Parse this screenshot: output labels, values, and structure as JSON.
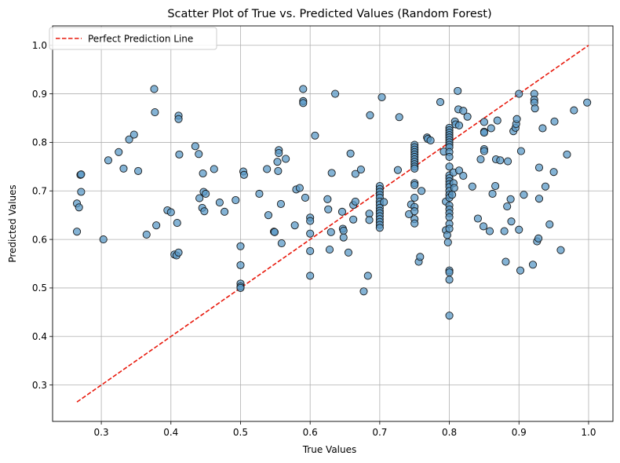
{
  "chart_data": {
    "type": "scatter",
    "title": "Scatter Plot of True vs. Predicted Values (Random Forest)",
    "xlabel": "True Values",
    "ylabel": "Predicted Values",
    "xlim": [
      0.23,
      1.035
    ],
    "ylim": [
      0.225,
      1.04
    ],
    "xticks": [
      "0.3",
      "0.4",
      "0.5",
      "0.6",
      "0.7",
      "0.8",
      "0.9",
      "1.0"
    ],
    "yticks": [
      "0.3",
      "0.4",
      "0.5",
      "0.6",
      "0.7",
      "0.8",
      "0.9",
      "1.0"
    ],
    "grid": true,
    "legend_position": "top-left",
    "reference_line": {
      "name": "Perfect Prediction Line",
      "style": "dashed",
      "color": "#e8190c",
      "from": [
        0.265,
        0.265
      ],
      "to": [
        1.0,
        1.0
      ]
    },
    "point_color": "#5b9ac7",
    "point_edge_color": "#1a1a1a",
    "series": [
      {
        "points": [
          [
            0.265,
            0.674
          ],
          [
            0.265,
            0.616
          ],
          [
            0.268,
            0.666
          ],
          [
            0.27,
            0.733
          ],
          [
            0.271,
            0.734
          ],
          [
            0.271,
            0.698
          ],
          [
            0.303,
            0.6
          ],
          [
            0.31,
            0.763
          ],
          [
            0.325,
            0.78
          ],
          [
            0.332,
            0.746
          ],
          [
            0.34,
            0.806
          ],
          [
            0.347,
            0.816
          ],
          [
            0.353,
            0.741
          ],
          [
            0.365,
            0.61
          ],
          [
            0.376,
            0.91
          ],
          [
            0.377,
            0.862
          ],
          [
            0.379,
            0.629
          ],
          [
            0.395,
            0.66
          ],
          [
            0.4,
            0.656
          ],
          [
            0.405,
            0.569
          ],
          [
            0.408,
            0.567
          ],
          [
            0.409,
            0.634
          ],
          [
            0.411,
            0.573
          ],
          [
            0.411,
            0.855
          ],
          [
            0.411,
            0.848
          ],
          [
            0.412,
            0.775
          ],
          [
            0.435,
            0.792
          ],
          [
            0.44,
            0.776
          ],
          [
            0.441,
            0.685
          ],
          [
            0.445,
            0.665
          ],
          [
            0.446,
            0.736
          ],
          [
            0.447,
            0.698
          ],
          [
            0.448,
            0.658
          ],
          [
            0.45,
            0.694
          ],
          [
            0.462,
            0.745
          ],
          [
            0.47,
            0.676
          ],
          [
            0.477,
            0.657
          ],
          [
            0.493,
            0.681
          ],
          [
            0.5,
            0.586
          ],
          [
            0.5,
            0.547
          ],
          [
            0.5,
            0.509
          ],
          [
            0.5,
            0.503
          ],
          [
            0.5,
            0.5
          ],
          [
            0.504,
            0.74
          ],
          [
            0.505,
            0.733
          ],
          [
            0.527,
            0.694
          ],
          [
            0.538,
            0.745
          ],
          [
            0.54,
            0.65
          ],
          [
            0.548,
            0.616
          ],
          [
            0.549,
            0.615
          ],
          [
            0.553,
            0.76
          ],
          [
            0.554,
            0.741
          ],
          [
            0.555,
            0.784
          ],
          [
            0.555,
            0.778
          ],
          [
            0.558,
            0.673
          ],
          [
            0.559,
            0.592
          ],
          [
            0.565,
            0.766
          ],
          [
            0.578,
            0.629
          ],
          [
            0.58,
            0.703
          ],
          [
            0.585,
            0.706
          ],
          [
            0.59,
            0.91
          ],
          [
            0.59,
            0.885
          ],
          [
            0.59,
            0.881
          ],
          [
            0.593,
            0.686
          ],
          [
            0.6,
            0.645
          ],
          [
            0.6,
            0.638
          ],
          [
            0.6,
            0.612
          ],
          [
            0.6,
            0.576
          ],
          [
            0.6,
            0.525
          ],
          [
            0.607,
            0.814
          ],
          [
            0.625,
            0.683
          ],
          [
            0.626,
            0.662
          ],
          [
            0.628,
            0.579
          ],
          [
            0.631,
            0.737
          ],
          [
            0.63,
            0.615
          ],
          [
            0.636,
            0.9
          ],
          [
            0.646,
            0.657
          ],
          [
            0.647,
            0.622
          ],
          [
            0.648,
            0.618
          ],
          [
            0.648,
            0.604
          ],
          [
            0.655,
            0.573
          ],
          [
            0.658,
            0.777
          ],
          [
            0.662,
            0.671
          ],
          [
            0.662,
            0.641
          ],
          [
            0.665,
            0.735
          ],
          [
            0.665,
            0.678
          ],
          [
            0.673,
            0.744
          ],
          [
            0.677,
            0.493
          ],
          [
            0.683,
            0.525
          ],
          [
            0.685,
            0.653
          ],
          [
            0.685,
            0.64
          ],
          [
            0.686,
            0.856
          ],
          [
            0.7,
            0.71
          ],
          [
            0.7,
            0.704
          ],
          [
            0.7,
            0.698
          ],
          [
            0.7,
            0.692
          ],
          [
            0.7,
            0.686
          ],
          [
            0.7,
            0.678
          ],
          [
            0.7,
            0.672
          ],
          [
            0.7,
            0.665
          ],
          [
            0.7,
            0.659
          ],
          [
            0.7,
            0.654
          ],
          [
            0.7,
            0.648
          ],
          [
            0.7,
            0.642
          ],
          [
            0.7,
            0.636
          ],
          [
            0.7,
            0.63
          ],
          [
            0.7,
            0.624
          ],
          [
            0.703,
            0.893
          ],
          [
            0.706,
            0.677
          ],
          [
            0.726,
            0.743
          ],
          [
            0.728,
            0.852
          ],
          [
            0.742,
            0.652
          ],
          [
            0.745,
            0.672
          ],
          [
            0.75,
            0.795
          ],
          [
            0.75,
            0.79
          ],
          [
            0.75,
            0.785
          ],
          [
            0.75,
            0.78
          ],
          [
            0.75,
            0.775
          ],
          [
            0.75,
            0.77
          ],
          [
            0.75,
            0.765
          ],
          [
            0.75,
            0.76
          ],
          [
            0.75,
            0.755
          ],
          [
            0.75,
            0.75
          ],
          [
            0.75,
            0.746
          ],
          [
            0.75,
            0.716
          ],
          [
            0.75,
            0.712
          ],
          [
            0.75,
            0.686
          ],
          [
            0.75,
            0.667
          ],
          [
            0.75,
            0.658
          ],
          [
            0.75,
            0.642
          ],
          [
            0.75,
            0.633
          ],
          [
            0.756,
            0.554
          ],
          [
            0.758,
            0.564
          ],
          [
            0.76,
            0.7
          ],
          [
            0.768,
            0.81
          ],
          [
            0.769,
            0.807
          ],
          [
            0.773,
            0.804
          ],
          [
            0.787,
            0.883
          ],
          [
            0.792,
            0.781
          ],
          [
            0.795,
            0.678
          ],
          [
            0.795,
            0.619
          ],
          [
            0.797,
            0.609
          ],
          [
            0.798,
            0.594
          ],
          [
            0.8,
            0.83
          ],
          [
            0.8,
            0.825
          ],
          [
            0.8,
            0.82
          ],
          [
            0.8,
            0.815
          ],
          [
            0.8,
            0.81
          ],
          [
            0.8,
            0.805
          ],
          [
            0.8,
            0.8
          ],
          [
            0.8,
            0.795
          ],
          [
            0.8,
            0.79
          ],
          [
            0.8,
            0.78
          ],
          [
            0.8,
            0.77
          ],
          [
            0.8,
            0.75
          ],
          [
            0.8,
            0.732
          ],
          [
            0.8,
            0.726
          ],
          [
            0.8,
            0.72
          ],
          [
            0.8,
            0.714
          ],
          [
            0.8,
            0.708
          ],
          [
            0.8,
            0.7
          ],
          [
            0.8,
            0.692
          ],
          [
            0.8,
            0.686
          ],
          [
            0.8,
            0.67
          ],
          [
            0.8,
            0.662
          ],
          [
            0.8,
            0.654
          ],
          [
            0.8,
            0.646
          ],
          [
            0.8,
            0.632
          ],
          [
            0.8,
            0.622
          ],
          [
            0.8,
            0.536
          ],
          [
            0.8,
            0.532
          ],
          [
            0.8,
            0.517
          ],
          [
            0.8,
            0.443
          ],
          [
            0.804,
            0.692
          ],
          [
            0.806,
            0.738
          ],
          [
            0.806,
            0.716
          ],
          [
            0.807,
            0.706
          ],
          [
            0.808,
            0.843
          ],
          [
            0.809,
            0.837
          ],
          [
            0.812,
            0.906
          ],
          [
            0.813,
            0.868
          ],
          [
            0.814,
            0.835
          ],
          [
            0.814,
            0.742
          ],
          [
            0.82,
            0.865
          ],
          [
            0.82,
            0.731
          ],
          [
            0.826,
            0.853
          ],
          [
            0.833,
            0.709
          ],
          [
            0.841,
            0.643
          ],
          [
            0.845,
            0.765
          ],
          [
            0.849,
            0.627
          ],
          [
            0.85,
            0.842
          ],
          [
            0.85,
            0.822
          ],
          [
            0.85,
            0.82
          ],
          [
            0.85,
            0.786
          ],
          [
            0.85,
            0.782
          ],
          [
            0.858,
            0.617
          ],
          [
            0.86,
            0.829
          ],
          [
            0.862,
            0.694
          ],
          [
            0.866,
            0.71
          ],
          [
            0.867,
            0.765
          ],
          [
            0.869,
            0.845
          ],
          [
            0.873,
            0.763
          ],
          [
            0.879,
            0.617
          ],
          [
            0.881,
            0.554
          ],
          [
            0.883,
            0.668
          ],
          [
            0.884,
            0.761
          ],
          [
            0.888,
            0.683
          ],
          [
            0.889,
            0.637
          ],
          [
            0.892,
            0.823
          ],
          [
            0.895,
            0.83
          ],
          [
            0.896,
            0.838
          ],
          [
            0.897,
            0.848
          ],
          [
            0.9,
            0.9
          ],
          [
            0.9,
            0.62
          ],
          [
            0.902,
            0.536
          ],
          [
            0.903,
            0.782
          ],
          [
            0.907,
            0.692
          ],
          [
            0.92,
            0.548
          ],
          [
            0.922,
            0.9
          ],
          [
            0.922,
            0.888
          ],
          [
            0.922,
            0.882
          ],
          [
            0.923,
            0.87
          ],
          [
            0.926,
            0.596
          ],
          [
            0.928,
            0.602
          ],
          [
            0.929,
            0.684
          ],
          [
            0.929,
            0.748
          ],
          [
            0.934,
            0.829
          ],
          [
            0.938,
            0.709
          ],
          [
            0.944,
            0.631
          ],
          [
            0.95,
            0.739
          ],
          [
            0.951,
            0.843
          ],
          [
            0.96,
            0.578
          ],
          [
            0.969,
            0.775
          ],
          [
            0.979,
            0.866
          ],
          [
            0.998,
            0.882
          ]
        ]
      }
    ]
  },
  "legend": {
    "label": "Perfect Prediction Line"
  }
}
